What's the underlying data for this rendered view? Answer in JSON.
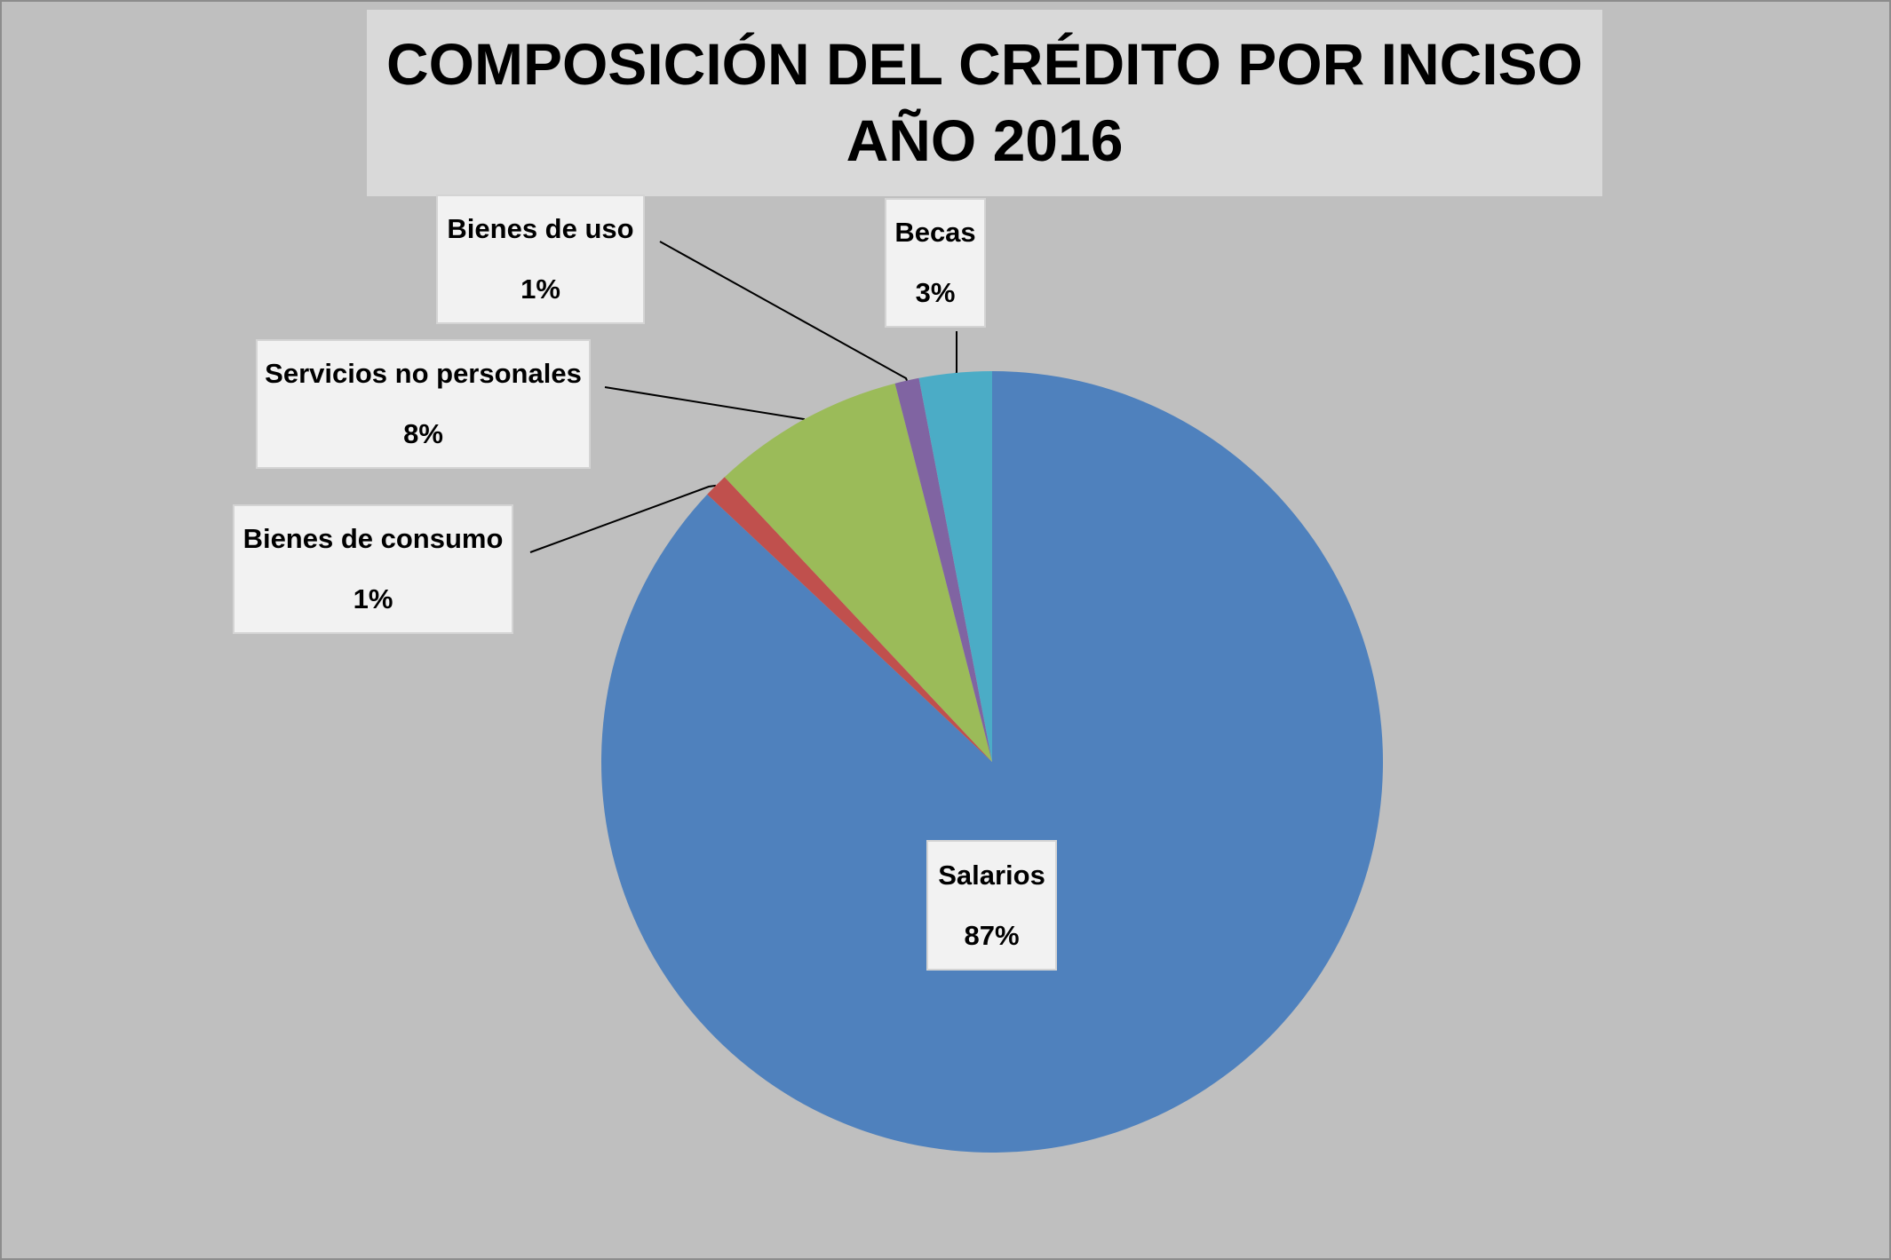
{
  "chart_data": {
    "type": "pie",
    "title": "COMPOSICIÓN DEL CRÉDITO POR INCISO",
    "subtitle": "AÑO 2016",
    "start_angle_deg": 0,
    "direction": "clockwise",
    "slices": [
      {
        "label": "Salarios",
        "value": 87,
        "pct_label": "87%",
        "color": "#4f81bd"
      },
      {
        "label": "Bienes de consumo",
        "value": 1,
        "pct_label": "1%",
        "color": "#c0504d"
      },
      {
        "label": "Servicios no personales",
        "value": 8,
        "pct_label": "8%",
        "color": "#9bbb59"
      },
      {
        "label": "Bienes de uso",
        "value": 1,
        "pct_label": "1%",
        "color": "#8064a2"
      },
      {
        "label": "Becas",
        "value": 3,
        "pct_label": "3%",
        "color": "#4bacc6"
      }
    ]
  },
  "colors": {
    "background": "#bfbfbf",
    "title_background": "#d9d9d9",
    "label_background": "#f2f2f2"
  }
}
